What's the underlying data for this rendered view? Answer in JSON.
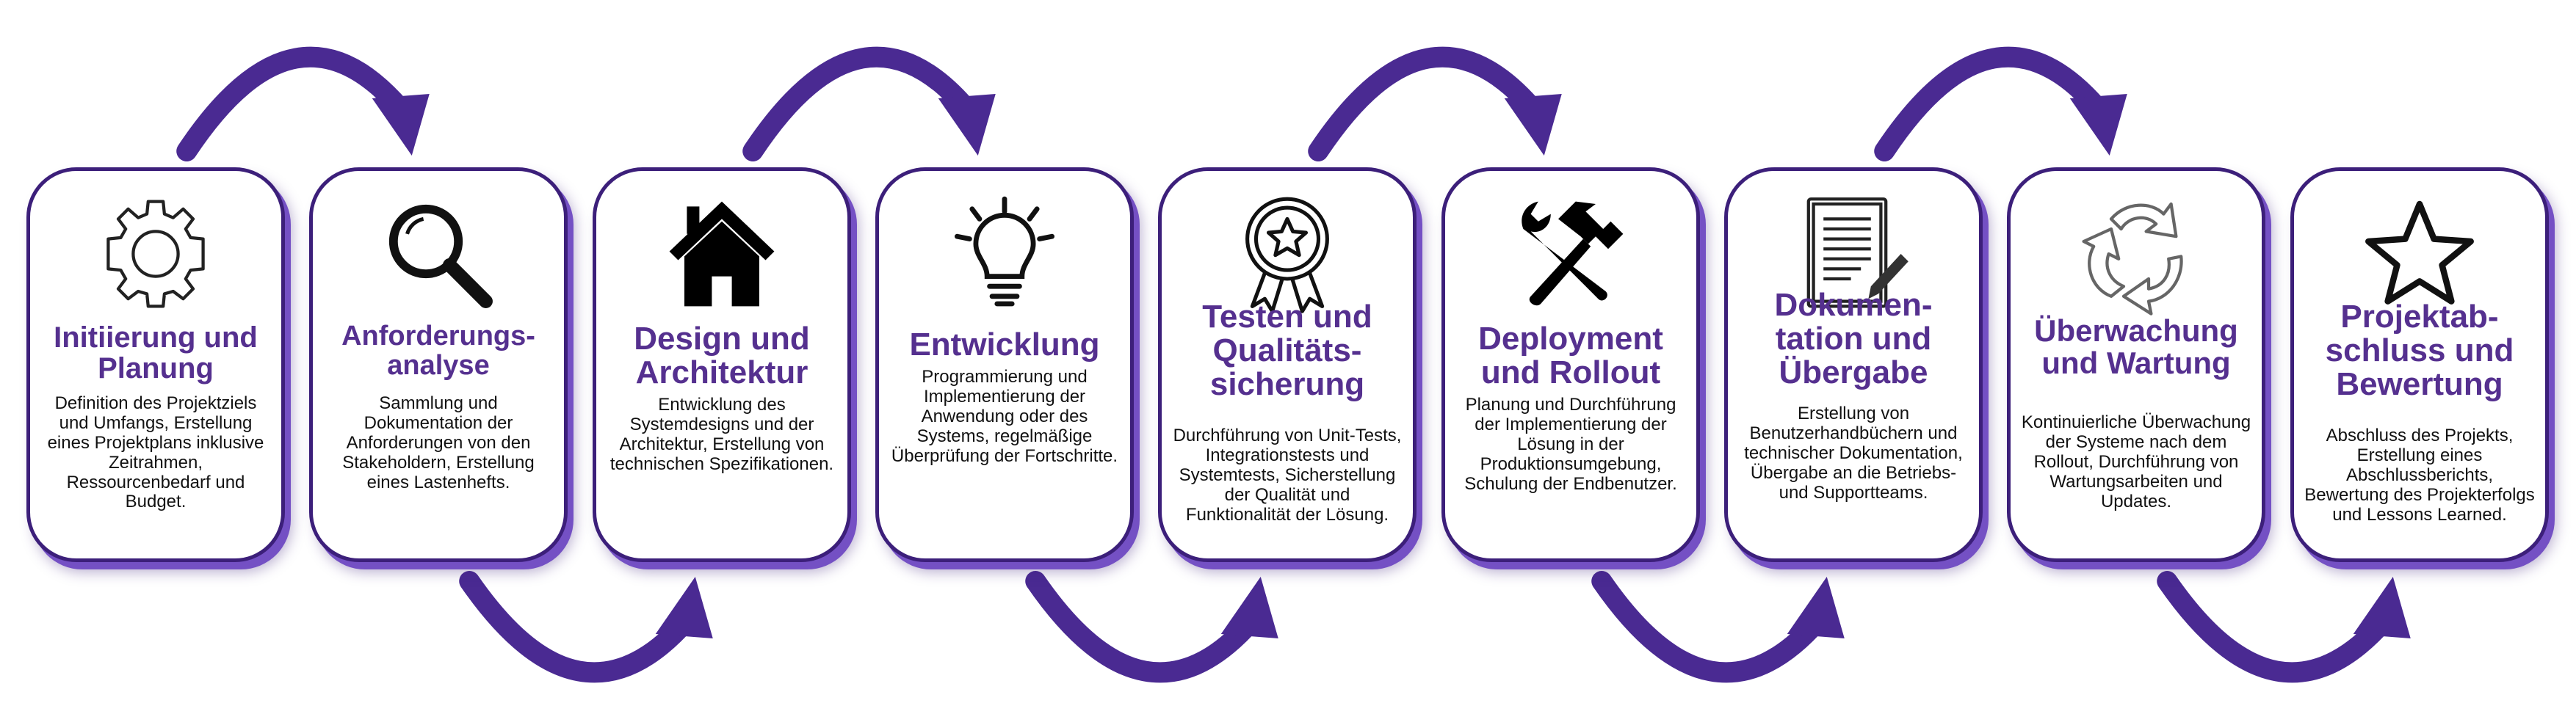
{
  "colors": {
    "accent": "#55308f",
    "border": "#3c1f7a",
    "arrow": "#4a2a92",
    "text": "#111111"
  },
  "steps": [
    {
      "icon": "gear-icon",
      "title": "Initiierung und Planung",
      "description": "Definition des Projektziels und Umfangs, Erstellung eines Projektplans inklusive Zeitrahmen, Ressourcenbedarf und Budget."
    },
    {
      "icon": "magnifier-icon",
      "title": "Anforderungs-analyse",
      "description": "Sammlung und Dokumentation der Anforderungen von den Stakeholdern, Erstellung eines Lastenhefts."
    },
    {
      "icon": "house-icon",
      "title": "Design und Architektur",
      "description": "Entwicklung des Systemdesigns und der Architektur, Erstellung von technischen Spezifikationen."
    },
    {
      "icon": "lightbulb-icon",
      "title": "Entwicklung",
      "description": "Programmierung und Implementierung der Anwendung oder des Systems, regelmäßige Überprüfung der Fortschritte."
    },
    {
      "icon": "award-ribbon-icon",
      "title": "Testen und Qualitäts-sicherung",
      "description": "Durchführung von Unit-Tests, Integrationstests und Systemtests, Sicherstellung der Qualität und Funktionalität der Lösung."
    },
    {
      "icon": "tools-icon",
      "title": "Deployment und Rollout",
      "description": "Planung und Durchführung der Implementierung der Lösung in der Produktionsumgebung, Schulung der Endbenutzer."
    },
    {
      "icon": "document-pen-icon",
      "title": "Dokumen-tation und Übergabe",
      "description": "Erstellung von Benutzerhandbüchern und technischer Dokumentation, Übergabe an die Betriebs- und Supportteams."
    },
    {
      "icon": "recycle-icon",
      "title": "Überwachung und Wartung",
      "description": "Kontinuierliche Überwachung der Systeme nach dem Rollout, Durchführung von Wartungsarbeiten und Updates."
    },
    {
      "icon": "star-icon",
      "title": "Projektab-schluss und Bewertung",
      "description": "Abschluss des Projekts, Erstellung eines Abschlussberichts, Bewertung des Projekterfolgs und Lessons Learned."
    }
  ]
}
